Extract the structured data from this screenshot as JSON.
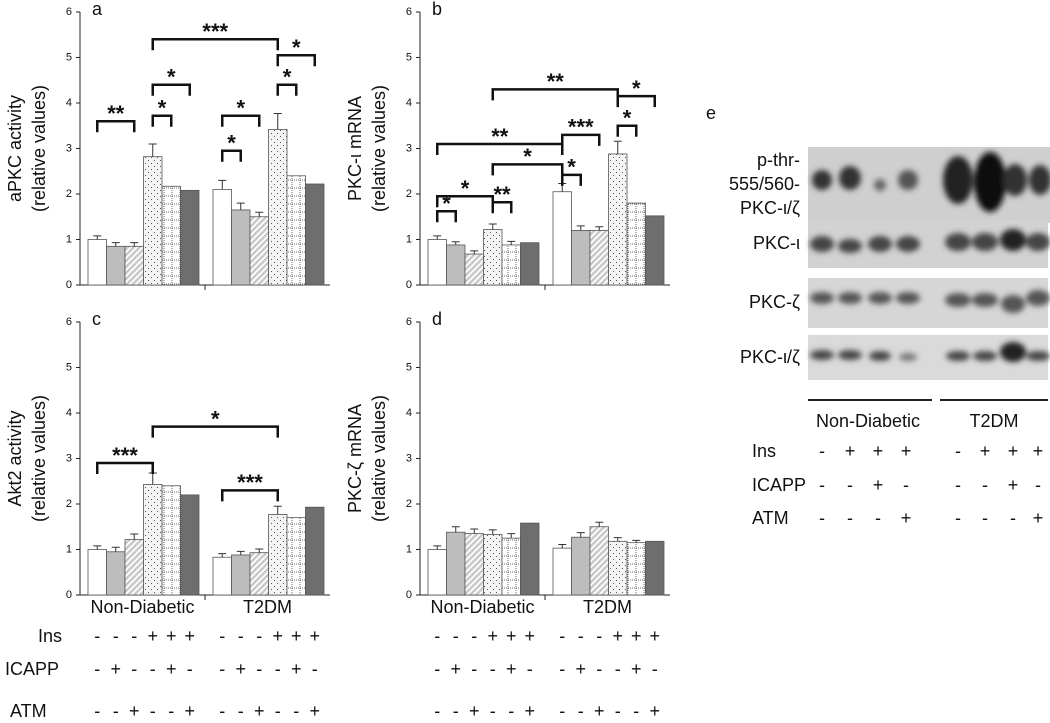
{
  "chart_data": [
    {
      "type": "bar",
      "panel": "a",
      "ylabel": [
        "aPKC activity",
        "(relative values)"
      ],
      "categories": [
        null,
        null
      ],
      "ylim": [
        0,
        6
      ],
      "yticks": [
        0,
        1,
        2,
        3,
        4,
        5,
        6
      ],
      "series": [
        {
          "color": "#ffffff",
          "pattern": "none",
          "values": [
            1.0,
            2.1
          ],
          "errors": [
            0.08,
            0.2
          ]
        },
        {
          "color": "#bdbdbd",
          "pattern": "none",
          "values": [
            0.85,
            1.65
          ],
          "errors": [
            0.08,
            0.15
          ]
        },
        {
          "color": "#c8c8c8",
          "pattern": "hatch",
          "values": [
            0.85,
            1.5
          ],
          "errors": [
            0.08,
            0.1
          ]
        },
        {
          "color": "#f4f4f4",
          "pattern": "dots",
          "values": [
            2.82,
            3.42
          ],
          "errors": [
            0.28,
            0.35
          ]
        },
        {
          "color": "#ffffff",
          "pattern": "grid",
          "values": [
            2.17,
            2.4
          ],
          "errors": [
            null,
            null
          ]
        },
        {
          "color": "#6e6e6e",
          "pattern": "none",
          "values": [
            2.08,
            2.22
          ],
          "errors": [
            null,
            null
          ]
        }
      ],
      "brackets": [
        "***",
        "**",
        "*",
        "*",
        "*",
        "*",
        "*",
        "*"
      ]
    },
    {
      "type": "bar",
      "panel": "b",
      "ylabel": [
        "PKC-ι mRNA",
        "(relative values)"
      ],
      "categories": [
        null,
        null
      ],
      "ylim": [
        0,
        6
      ],
      "yticks": [
        0,
        1,
        2,
        3,
        4,
        5,
        6
      ],
      "series": [
        {
          "color": "#ffffff",
          "pattern": "none",
          "values": [
            1.0,
            2.05
          ],
          "errors": [
            0.08,
            0.18
          ]
        },
        {
          "color": "#bdbdbd",
          "pattern": "none",
          "values": [
            0.88,
            1.2
          ],
          "errors": [
            0.07,
            0.1
          ]
        },
        {
          "color": "#c8c8c8",
          "pattern": "hatch",
          "values": [
            0.68,
            1.2
          ],
          "errors": [
            0.07,
            0.08
          ]
        },
        {
          "color": "#f4f4f4",
          "pattern": "dots",
          "values": [
            1.22,
            2.88
          ],
          "errors": [
            0.12,
            0.28
          ]
        },
        {
          "color": "#ffffff",
          "pattern": "grid",
          "values": [
            0.88,
            1.8
          ],
          "errors": [
            0.08,
            null
          ]
        },
        {
          "color": "#6e6e6e",
          "pattern": "none",
          "values": [
            0.93,
            1.52
          ],
          "errors": [
            null,
            null
          ]
        }
      ],
      "brackets": [
        "**",
        "**",
        "*",
        "*",
        "**",
        "*",
        "*",
        "***",
        "*",
        "*"
      ]
    },
    {
      "type": "bar",
      "panel": "c",
      "ylabel": [
        "Akt2  activity",
        "(relative values)"
      ],
      "categories": [
        "Non-Diabetic",
        "T2DM"
      ],
      "ylim": [
        0,
        6
      ],
      "yticks": [
        0,
        1,
        2,
        3,
        4,
        5,
        6
      ],
      "series": [
        {
          "color": "#ffffff",
          "pattern": "none",
          "values": [
            1.0,
            0.83
          ],
          "errors": [
            0.08,
            0.08
          ]
        },
        {
          "color": "#bdbdbd",
          "pattern": "none",
          "values": [
            0.95,
            0.88
          ],
          "errors": [
            0.1,
            0.08
          ]
        },
        {
          "color": "#c8c8c8",
          "pattern": "hatch",
          "values": [
            1.22,
            0.93
          ],
          "errors": [
            0.12,
            0.08
          ]
        },
        {
          "color": "#f4f4f4",
          "pattern": "dots",
          "values": [
            2.43,
            1.77
          ],
          "errors": [
            0.25,
            0.18
          ]
        },
        {
          "color": "#ffffff",
          "pattern": "grid",
          "values": [
            2.4,
            1.7
          ],
          "errors": [
            null,
            null
          ]
        },
        {
          "color": "#6e6e6e",
          "pattern": "none",
          "values": [
            2.2,
            1.93
          ],
          "errors": [
            null,
            null
          ]
        }
      ],
      "brackets": [
        "***",
        "*",
        "***"
      ]
    },
    {
      "type": "bar",
      "panel": "d",
      "ylabel": [
        "PKC-ζ mRNA",
        "(relative values)"
      ],
      "categories": [
        "Non-Diabetic",
        "T2DM"
      ],
      "ylim": [
        0,
        6
      ],
      "yticks": [
        0,
        1,
        2,
        3,
        4,
        5,
        6
      ],
      "series": [
        {
          "color": "#ffffff",
          "pattern": "none",
          "values": [
            1.0,
            1.03
          ],
          "errors": [
            0.08,
            0.08
          ]
        },
        {
          "color": "#bdbdbd",
          "pattern": "none",
          "values": [
            1.38,
            1.27
          ],
          "errors": [
            0.12,
            0.1
          ]
        },
        {
          "color": "#c8c8c8",
          "pattern": "hatch",
          "values": [
            1.35,
            1.5
          ],
          "errors": [
            0.1,
            0.1
          ]
        },
        {
          "color": "#f4f4f4",
          "pattern": "dots",
          "values": [
            1.33,
            1.18
          ],
          "errors": [
            0.1,
            0.08
          ]
        },
        {
          "color": "#ffffff",
          "pattern": "grid",
          "values": [
            1.25,
            1.15
          ],
          "errors": [
            0.1,
            0.05
          ]
        },
        {
          "color": "#6e6e6e",
          "pattern": "none",
          "values": [
            1.58,
            1.18
          ],
          "errors": [
            null,
            null
          ]
        }
      ],
      "brackets": []
    }
  ],
  "treatments": [
    {
      "rows": [
        {
          "label": "Ins",
          "marks": [
            "-",
            "-",
            "-",
            "+",
            "+",
            "+",
            "-",
            "-",
            "-",
            "+",
            "+",
            "+"
          ]
        },
        {
          "label": "ICAPP",
          "marks": [
            "-",
            "+",
            "-",
            "-",
            "+",
            "-",
            "-",
            "+",
            "-",
            "-",
            "+",
            "-"
          ]
        },
        {
          "label": "ATM",
          "marks": [
            "-",
            "-",
            "+",
            "-",
            "-",
            "+",
            "-",
            "-",
            "+",
            "-",
            "-",
            "+"
          ]
        }
      ]
    },
    {
      "rows": [
        {
          "marks": [
            "-",
            "-",
            "-",
            "+",
            "+",
            "+",
            "-",
            "-",
            "-",
            "+",
            "+",
            "+"
          ]
        },
        {
          "marks": [
            "-",
            "+",
            "-",
            "-",
            "+",
            "-",
            "-",
            "+",
            "-",
            "-",
            "+",
            "-"
          ]
        },
        {
          "marks": [
            "-",
            "-",
            "+",
            "-",
            "-",
            "+",
            "-",
            "-",
            "+",
            "-",
            "-",
            "+"
          ]
        }
      ]
    }
  ],
  "blot": {
    "panel": "e",
    "bands": [
      {
        "label": [
          "p-thr-",
          "555/560-",
          "PKC-ι/ζ"
        ]
      },
      {
        "label": [
          "PKC-ι"
        ]
      },
      {
        "label": [
          "PKC-ζ"
        ]
      },
      {
        "label": [
          "PKC-ι/ζ"
        ]
      }
    ],
    "groups": [
      "Non-Diabetic",
      "T2DM"
    ],
    "rows": [
      {
        "label": "Ins",
        "marks": [
          "-",
          "+",
          "+",
          "+",
          "-",
          "+",
          "+",
          "+"
        ]
      },
      {
        "label": "ICAPP",
        "marks": [
          "-",
          "-",
          "+",
          "-",
          "-",
          "-",
          "+",
          "-"
        ]
      },
      {
        "label": "ATM",
        "marks": [
          "-",
          "-",
          "-",
          "+",
          "-",
          "-",
          "-",
          "+"
        ]
      }
    ]
  }
}
